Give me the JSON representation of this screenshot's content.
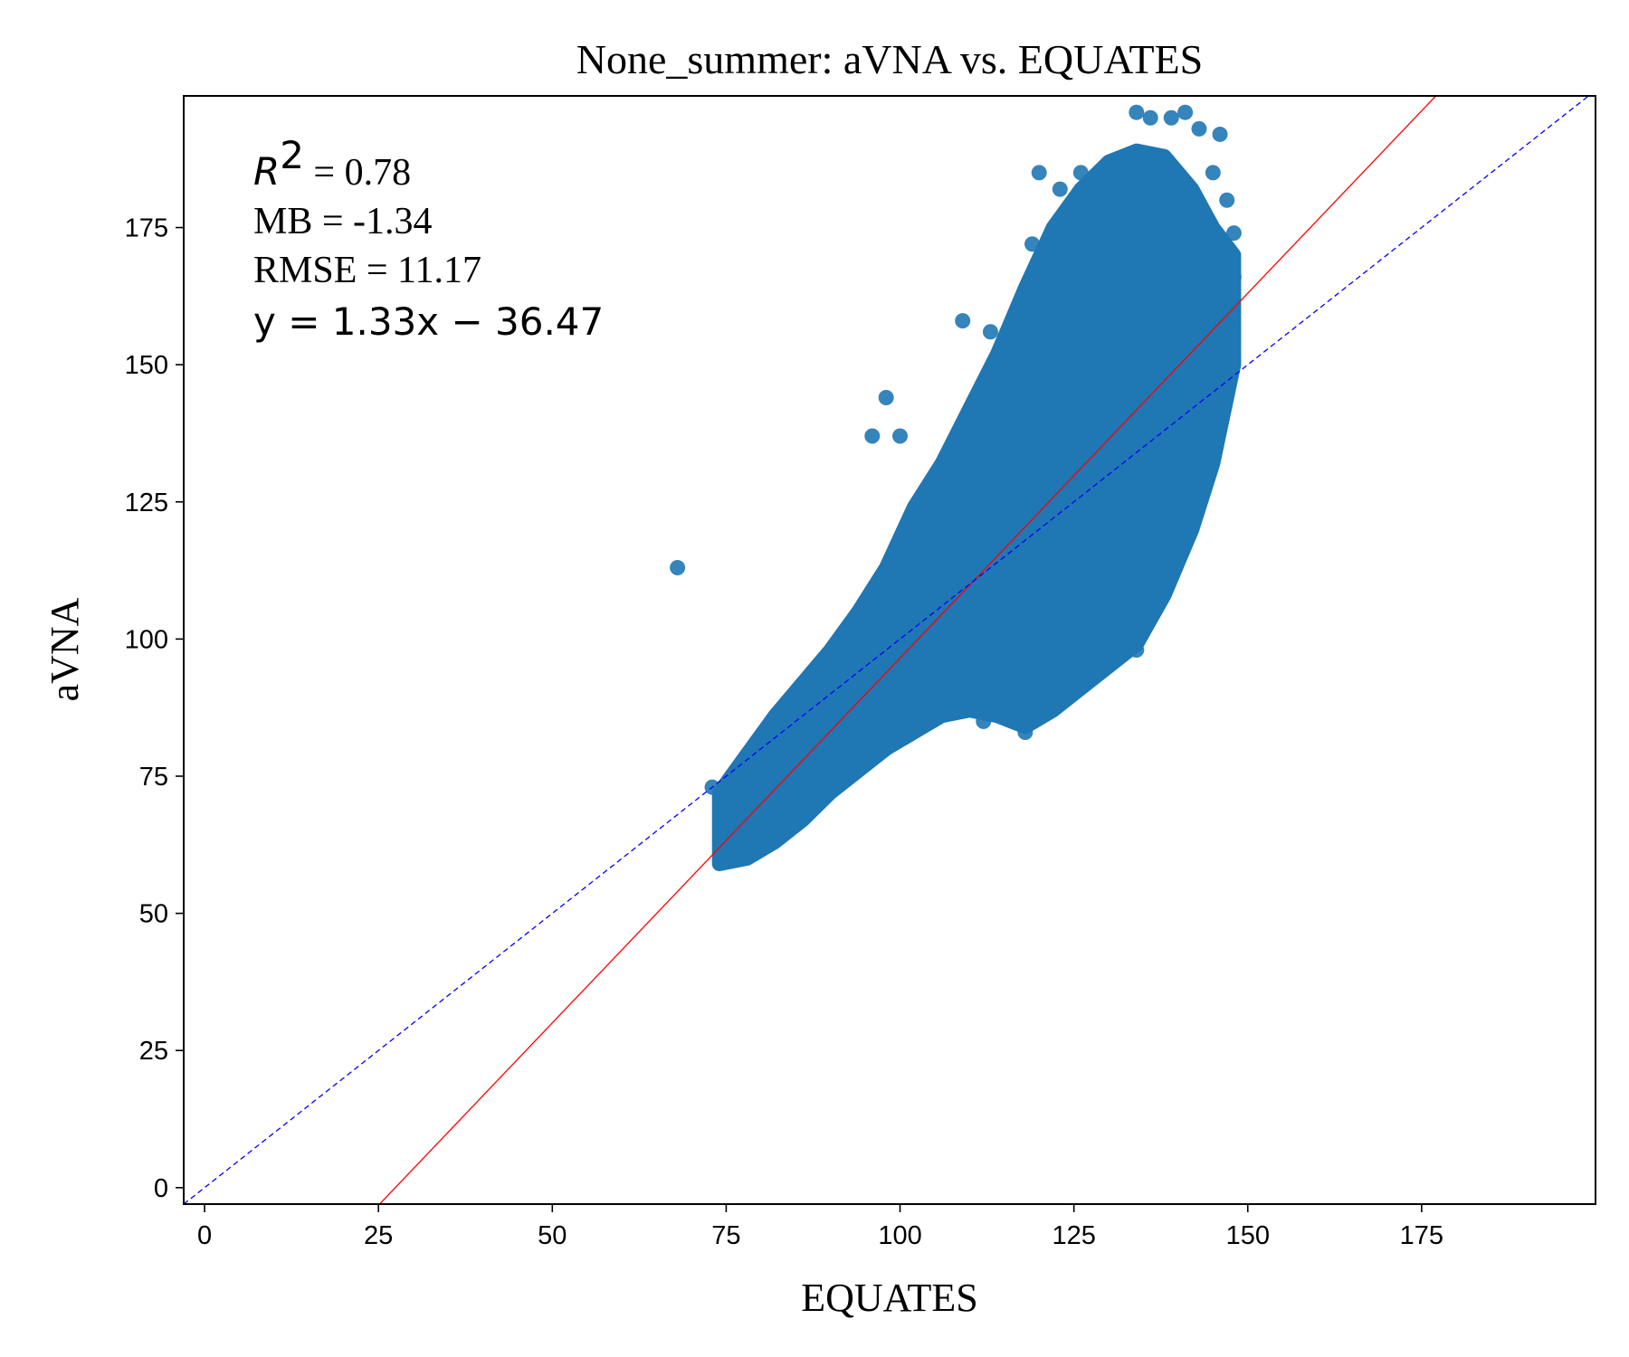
{
  "chart_data": {
    "type": "scatter",
    "title": "None_summer: aVNA vs. EQUATES",
    "xlabel": "EQUATES",
    "ylabel": "aVNA",
    "xlim": [
      -3,
      200
    ],
    "ylim": [
      -3,
      199
    ],
    "xticks": [
      0,
      25,
      50,
      75,
      100,
      125,
      150,
      175
    ],
    "yticks": [
      0,
      25,
      50,
      75,
      100,
      125,
      150,
      175
    ],
    "grid": false,
    "point_color": "#1f77b4",
    "fit_line": {
      "slope": 1.33,
      "intercept": -36.47,
      "color": "#ff0000",
      "style": "solid"
    },
    "one_to_one_line": {
      "slope": 1,
      "intercept": 0,
      "color": "#0000ff",
      "style": "dashed"
    },
    "stats": {
      "r2_label": "R",
      "r2_sup": "2",
      "r2_value": " = 0.78",
      "mb": "MB = -1.34",
      "rmse": "RMSE = 11.17",
      "equation": "y = 1.33x − 36.47"
    },
    "outliers": [
      {
        "x": 68,
        "y": 113
      },
      {
        "x": 73,
        "y": 73
      },
      {
        "x": 92,
        "y": 101
      },
      {
        "x": 96,
        "y": 137
      },
      {
        "x": 98,
        "y": 144
      },
      {
        "x": 100,
        "y": 137
      },
      {
        "x": 109,
        "y": 158
      },
      {
        "x": 113,
        "y": 156
      },
      {
        "x": 118,
        "y": 83
      },
      {
        "x": 119,
        "y": 172
      },
      {
        "x": 120,
        "y": 185
      },
      {
        "x": 123,
        "y": 182
      },
      {
        "x": 126,
        "y": 185
      },
      {
        "x": 131,
        "y": 186
      },
      {
        "x": 134,
        "y": 196
      },
      {
        "x": 136,
        "y": 195
      },
      {
        "x": 139,
        "y": 195
      },
      {
        "x": 141,
        "y": 196
      },
      {
        "x": 143,
        "y": 193
      },
      {
        "x": 146,
        "y": 192
      },
      {
        "x": 145,
        "y": 185
      },
      {
        "x": 147,
        "y": 180
      },
      {
        "x": 148,
        "y": 174
      },
      {
        "x": 148,
        "y": 166
      },
      {
        "x": 147,
        "y": 158
      },
      {
        "x": 143,
        "y": 140
      },
      {
        "x": 140,
        "y": 126
      },
      {
        "x": 143,
        "y": 126
      },
      {
        "x": 140,
        "y": 121
      },
      {
        "x": 135,
        "y": 113
      },
      {
        "x": 134,
        "y": 98
      },
      {
        "x": 126,
        "y": 93
      },
      {
        "x": 122,
        "y": 88
      },
      {
        "x": 112,
        "y": 85
      }
    ],
    "density_band": [
      {
        "x": 74,
        "y_low": 59,
        "y_high": 72
      },
      {
        "x": 78,
        "y_low": 60,
        "y_high": 79
      },
      {
        "x": 82,
        "y_low": 63,
        "y_high": 86
      },
      {
        "x": 86,
        "y_low": 67,
        "y_high": 92
      },
      {
        "x": 90,
        "y_low": 72,
        "y_high": 98
      },
      {
        "x": 94,
        "y_low": 76,
        "y_high": 105
      },
      {
        "x": 98,
        "y_low": 80,
        "y_high": 113
      },
      {
        "x": 102,
        "y_low": 83,
        "y_high": 124
      },
      {
        "x": 106,
        "y_low": 86,
        "y_high": 132
      },
      {
        "x": 110,
        "y_low": 87,
        "y_high": 142
      },
      {
        "x": 114,
        "y_low": 86,
        "y_high": 152
      },
      {
        "x": 118,
        "y_low": 84,
        "y_high": 164
      },
      {
        "x": 122,
        "y_low": 87,
        "y_high": 175
      },
      {
        "x": 126,
        "y_low": 91,
        "y_high": 182
      },
      {
        "x": 130,
        "y_low": 95,
        "y_high": 187
      },
      {
        "x": 134,
        "y_low": 99,
        "y_high": 189
      },
      {
        "x": 138,
        "y_low": 108,
        "y_high": 188
      },
      {
        "x": 142,
        "y_low": 120,
        "y_high": 182
      },
      {
        "x": 145,
        "y_low": 132,
        "y_high": 175
      },
      {
        "x": 148,
        "y_low": 150,
        "y_high": 170
      }
    ]
  }
}
